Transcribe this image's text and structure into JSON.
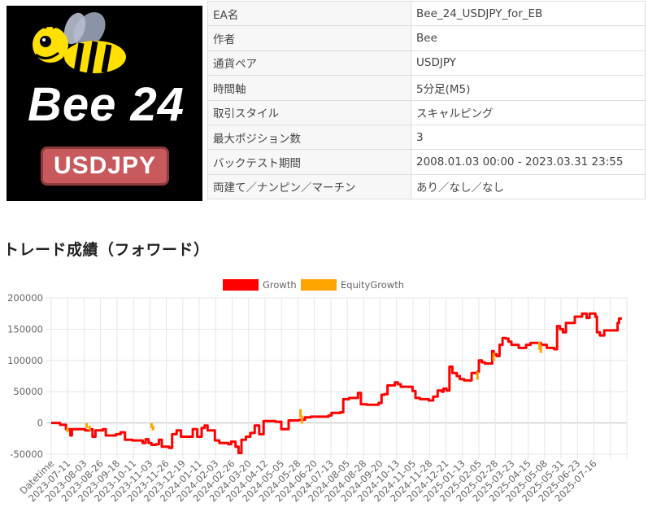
{
  "logo": {
    "title": "Bee 24",
    "pair_badge": "USDJPY"
  },
  "info_rows": [
    {
      "key": "EA名",
      "value": "Bee_24_USDJPY_for_EB"
    },
    {
      "key": "作者",
      "value": "Bee"
    },
    {
      "key": "通貨ペア",
      "value": "USDJPY"
    },
    {
      "key": "時間軸",
      "value": "5分足(M5)"
    },
    {
      "key": "取引スタイル",
      "value": "スキャルピング"
    },
    {
      "key": "最大ポジション数",
      "value": "3"
    },
    {
      "key": "バックテスト期間",
      "value": "2008.01.03 00:00 - 2023.03.31 23:55"
    },
    {
      "key": "両建て／ナンピン／マーチン",
      "value": "あり／なし／なし"
    }
  ],
  "section_title": "トレード成績（フォワード）",
  "colors": {
    "growth": "#ff0000",
    "equity": "#ffa500",
    "grid": "#e6e6e6"
  },
  "chart_data": {
    "type": "line",
    "legend_position": "top",
    "grid": true,
    "ylim": [
      -50000,
      200000
    ],
    "yticks": [
      200000,
      150000,
      100000,
      50000,
      0,
      -50000
    ],
    "x_tick_labels": [
      "Datetime",
      "2023-07-11",
      "2023-08-03",
      "2023-08-26",
      "2023-09-18",
      "2023-10-11",
      "2023-11-03",
      "2023-11-26",
      "2023-12-19",
      "2024-01-11",
      "2024-02-03",
      "2024-02-26",
      "2024-03-20",
      "2024-04-12",
      "2024-05-05",
      "2024-05-28",
      "2024-06-20",
      "2024-07-13",
      "2024-08-05",
      "2024-08-28",
      "2024-09-20",
      "2024-10-13",
      "2024-11-05",
      "2024-11-28",
      "2024-12-21",
      "2025-01-13",
      "2025-02-05",
      "2025-02-28",
      "2025-03-23",
      "2025-04-15",
      "2025-05-08",
      "2025-05-31",
      "2025-06-23",
      "2025-07-16"
    ],
    "x_index_max": 35,
    "series": [
      {
        "name": "Growth",
        "points": [
          [
            0,
            0
          ],
          [
            0.4,
            0
          ],
          [
            0.6,
            -3000
          ],
          [
            1.0,
            -10000
          ],
          [
            1.2,
            -10000
          ],
          [
            1.3,
            -20000
          ],
          [
            1.4,
            -10000
          ],
          [
            2.0,
            -10000
          ],
          [
            2.3,
            -12000
          ],
          [
            2.6,
            -10000
          ],
          [
            2.8,
            -22000
          ],
          [
            3.0,
            -12000
          ],
          [
            3.3,
            -12000
          ],
          [
            3.5,
            -10000
          ],
          [
            3.7,
            -20000
          ],
          [
            4.0,
            -20000
          ],
          [
            4.4,
            -18000
          ],
          [
            4.7,
            -15000
          ],
          [
            5.0,
            -27000
          ],
          [
            5.5,
            -28000
          ],
          [
            5.8,
            -28000
          ],
          [
            6.2,
            -32000
          ],
          [
            6.4,
            -26000
          ],
          [
            6.6,
            -32000
          ],
          [
            6.8,
            -35000
          ],
          [
            7.1,
            -34000
          ],
          [
            7.3,
            -27000
          ],
          [
            7.5,
            -38000
          ],
          [
            7.8,
            -38000
          ],
          [
            8.0,
            -40000
          ],
          [
            8.2,
            -18000
          ],
          [
            8.5,
            -12000
          ],
          [
            8.8,
            -22000
          ],
          [
            9.2,
            -22000
          ],
          [
            9.5,
            -22000
          ],
          [
            9.6,
            -10000
          ],
          [
            9.9,
            -22000
          ],
          [
            10.2,
            -8000
          ],
          [
            10.4,
            -4000
          ],
          [
            10.6,
            -12000
          ],
          [
            10.9,
            -12000
          ],
          [
            11.1,
            -28000
          ],
          [
            11.4,
            -32000
          ],
          [
            11.7,
            -32000
          ],
          [
            12.0,
            -34000
          ],
          [
            12.2,
            -30000
          ],
          [
            12.5,
            -38000
          ],
          [
            12.7,
            -48000
          ],
          [
            12.9,
            -27000
          ],
          [
            13.2,
            -22000
          ],
          [
            13.5,
            -16000
          ],
          [
            13.8,
            -4000
          ],
          [
            14.1,
            -18000
          ],
          [
            14.4,
            3000
          ],
          [
            14.8,
            3000
          ],
          [
            15.2,
            2000
          ],
          [
            15.5,
            2000
          ],
          [
            15.6,
            -10000
          ],
          [
            15.9,
            -10000
          ],
          [
            16.1,
            4000
          ],
          [
            16.5,
            4000
          ],
          [
            16.8,
            5000
          ],
          [
            17.2,
            9000
          ],
          [
            17.6,
            10000
          ],
          [
            18.0,
            10000
          ],
          [
            18.4,
            10000
          ],
          [
            18.8,
            12000
          ],
          [
            19.0,
            16000
          ],
          [
            19.4,
            16000
          ],
          [
            19.6,
            17000
          ],
          [
            19.8,
            38000
          ],
          [
            20.2,
            40000
          ],
          [
            20.6,
            40000
          ],
          [
            20.8,
            48000
          ],
          [
            21.0,
            30000
          ],
          [
            21.4,
            29000
          ],
          [
            21.8,
            29000
          ],
          [
            22.2,
            32000
          ],
          [
            22.4,
            45000
          ],
          [
            22.6,
            46000
          ],
          [
            22.8,
            60000
          ],
          [
            23.1,
            60000
          ],
          [
            23.3,
            65000
          ],
          [
            23.5,
            62000
          ],
          [
            23.7,
            58000
          ],
          [
            24.0,
            58000
          ],
          [
            24.3,
            58000
          ],
          [
            24.5,
            51000
          ],
          [
            24.7,
            40000
          ],
          [
            25.0,
            38000
          ],
          [
            25.3,
            38000
          ],
          [
            25.6,
            36000
          ],
          [
            25.9,
            42000
          ],
          [
            26.2,
            52000
          ],
          [
            26.5,
            50000
          ],
          [
            26.6,
            55000
          ],
          [
            26.8,
            52000
          ],
          [
            27.0,
            90000
          ],
          [
            27.2,
            80000
          ],
          [
            27.5,
            75000
          ],
          [
            27.7,
            70000
          ],
          [
            28.0,
            68000
          ],
          [
            28.3,
            68000
          ],
          [
            28.5,
            80000
          ],
          [
            28.7,
            80000
          ],
          [
            28.9,
            82000
          ],
          [
            29.0,
            100000
          ],
          [
            29.2,
            97000
          ],
          [
            29.4,
            95000
          ],
          [
            29.7,
            95000
          ],
          [
            29.9,
            115000
          ],
          [
            30.0,
            110000
          ],
          [
            30.2,
            107000
          ],
          [
            30.4,
            125000
          ],
          [
            30.6,
            136000
          ],
          [
            30.8,
            135000
          ],
          [
            31.0,
            130000
          ],
          [
            31.2,
            125000
          ],
          [
            31.5,
            125000
          ],
          [
            31.7,
            120000
          ],
          [
            31.9,
            120000
          ],
          [
            32.2,
            125000
          ],
          [
            32.5,
            128000
          ],
          [
            32.9,
            128000
          ],
          [
            33.2,
            125000
          ],
          [
            33.4,
            125000
          ],
          [
            33.6,
            120000
          ],
          [
            33.9,
            120000
          ],
          [
            34.1,
            118000
          ],
          [
            34.3,
            155000
          ],
          [
            34.5,
            150000
          ],
          [
            34.7,
            145000
          ],
          [
            34.9,
            160000
          ],
          [
            35.2,
            160000
          ],
          [
            35.4,
            160000
          ],
          [
            35.5,
            170000
          ],
          [
            35.8,
            170000
          ],
          [
            36.0,
            175000
          ],
          [
            36.3,
            168000
          ],
          [
            36.5,
            175000
          ],
          [
            36.7,
            175000
          ],
          [
            36.9,
            170000
          ],
          [
            37.0,
            145000
          ],
          [
            37.2,
            140000
          ],
          [
            37.5,
            148000
          ],
          [
            38.0,
            148000
          ],
          [
            38.2,
            148000
          ],
          [
            38.4,
            160000
          ],
          [
            38.5,
            167000
          ],
          [
            38.7,
            167000
          ]
        ]
      },
      {
        "name": "EquityGrowth",
        "points": [
          [
            1.1,
            -15000
          ],
          [
            2.4,
            -8000
          ],
          [
            2.6,
            -12000
          ],
          [
            6.8,
            -8000
          ],
          [
            6.9,
            -12000
          ],
          [
            16.9,
            22000
          ],
          [
            17.0,
            12000
          ],
          [
            28.9,
            82000
          ],
          [
            30.0,
            112000
          ],
          [
            33.1,
            130000
          ],
          [
            33.2,
            125000
          ]
        ]
      }
    ]
  }
}
